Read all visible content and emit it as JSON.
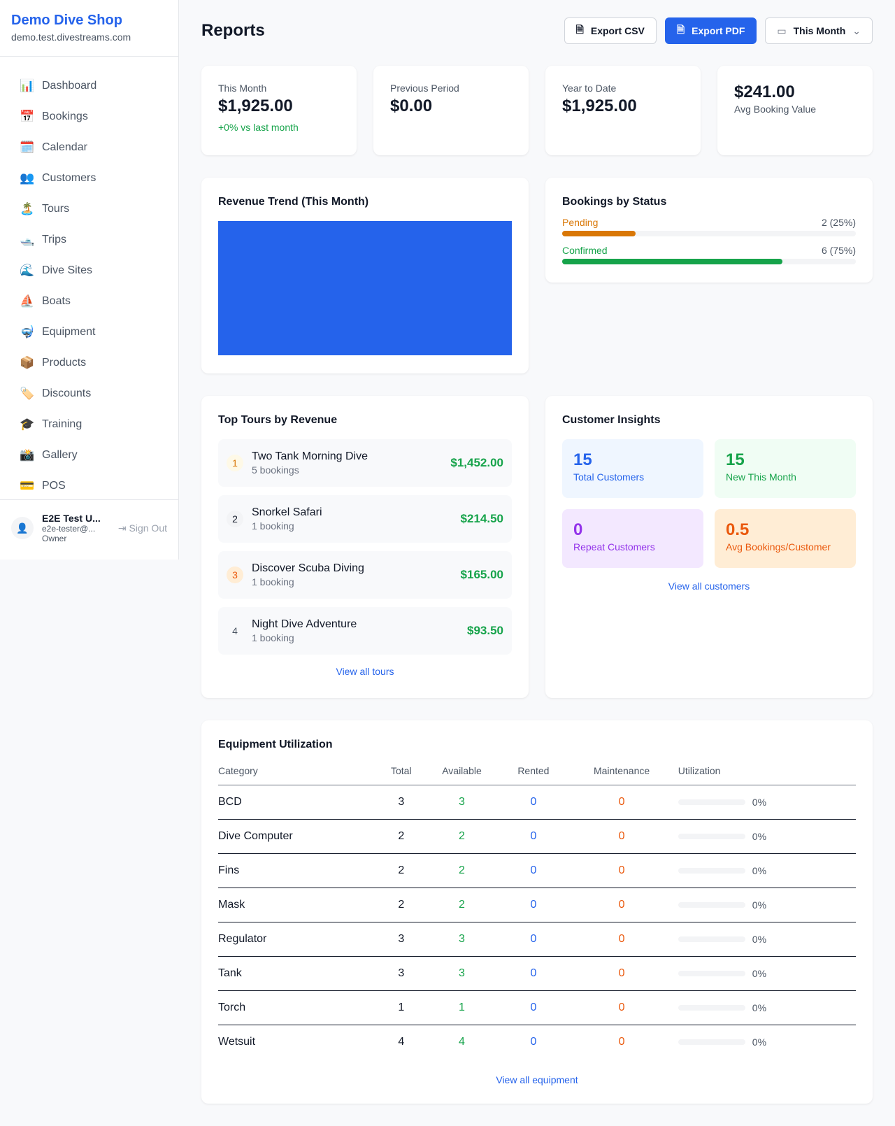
{
  "sidebar": {
    "shop_name": "Demo Dive Shop",
    "domain": "demo.test.divestreams.com",
    "items": [
      {
        "icon": "📊",
        "label": "Dashboard"
      },
      {
        "icon": "📅",
        "label": "Bookings"
      },
      {
        "icon": "🗓️",
        "label": "Calendar"
      },
      {
        "icon": "👥",
        "label": "Customers"
      },
      {
        "icon": "🏝️",
        "label": "Tours"
      },
      {
        "icon": "🛥️",
        "label": "Trips"
      },
      {
        "icon": "🌊",
        "label": "Dive Sites"
      },
      {
        "icon": "⛵",
        "label": "Boats"
      },
      {
        "icon": "🤿",
        "label": "Equipment"
      },
      {
        "icon": "📦",
        "label": "Products"
      },
      {
        "icon": "🏷️",
        "label": "Discounts"
      },
      {
        "icon": "🎓",
        "label": "Training"
      },
      {
        "icon": "📸",
        "label": "Gallery"
      },
      {
        "icon": "💳",
        "label": "POS"
      }
    ],
    "user": {
      "name": "E2E Test U...",
      "email": "e2e-tester@...",
      "role": "Owner",
      "sign_out": "Sign Out"
    }
  },
  "header": {
    "title": "Reports",
    "export_csv": "Export CSV",
    "export_pdf": "Export PDF",
    "period": "This Month"
  },
  "stats": [
    {
      "label": "This Month",
      "value": "$1,925.00",
      "change": "+0% vs last month"
    },
    {
      "label": "Previous Period",
      "value": "$0.00"
    },
    {
      "label": "Year to Date",
      "value": "$1,925.00"
    },
    {
      "label": "Avg Booking Value",
      "value": "$241.00"
    }
  ],
  "revenue": {
    "title": "Revenue Trend (This Month)",
    "color": "#2563eb"
  },
  "status": {
    "title": "Bookings by Status",
    "items": [
      {
        "label": "Pending",
        "value": "2 (25%)",
        "percent": 25,
        "color": "#d97706"
      },
      {
        "label": "Confirmed",
        "value": "6 (75%)",
        "percent": 75,
        "color": "#16a34a"
      }
    ]
  },
  "tours": {
    "title": "Top Tours by Revenue",
    "link": "View all tours",
    "items": [
      {
        "rank": "1",
        "name": "Two Tank Morning Dive",
        "bookings": "5 bookings",
        "revenue": "$1,452.00"
      },
      {
        "rank": "2",
        "name": "Snorkel Safari",
        "bookings": "1 booking",
        "revenue": "$214.50"
      },
      {
        "rank": "3",
        "name": "Discover Scuba Diving",
        "bookings": "1 booking",
        "revenue": "$165.00"
      },
      {
        "rank": "4",
        "name": "Night Dive Adventure",
        "bookings": "1 booking",
        "revenue": "$93.50"
      }
    ]
  },
  "insights": {
    "title": "Customer Insights",
    "link": "View all customers",
    "items": [
      {
        "value": "15",
        "label": "Total Customers"
      },
      {
        "value": "15",
        "label": "New This Month"
      },
      {
        "value": "0",
        "label": "Repeat Customers"
      },
      {
        "value": "0.5",
        "label": "Avg Bookings/Customer"
      }
    ]
  },
  "equipment": {
    "title": "Equipment Utilization",
    "link": "View all equipment",
    "columns": [
      "Category",
      "Total",
      "Available",
      "Rented",
      "Maintenance",
      "Utilization"
    ],
    "rows": [
      [
        "BCD",
        "3",
        "3",
        "0",
        "0",
        "0%"
      ],
      [
        "Dive Computer",
        "2",
        "2",
        "0",
        "0",
        "0%"
      ],
      [
        "Fins",
        "2",
        "2",
        "0",
        "0",
        "0%"
      ],
      [
        "Mask",
        "2",
        "2",
        "0",
        "0",
        "0%"
      ],
      [
        "Regulator",
        "3",
        "3",
        "0",
        "0",
        "0%"
      ],
      [
        "Tank",
        "3",
        "3",
        "0",
        "0",
        "0%"
      ],
      [
        "Torch",
        "1",
        "1",
        "0",
        "0",
        "0%"
      ],
      [
        "Wetsuit",
        "4",
        "4",
        "0",
        "0",
        "0%"
      ]
    ]
  }
}
